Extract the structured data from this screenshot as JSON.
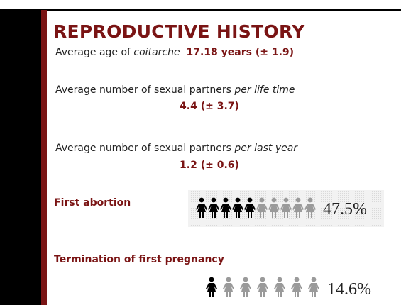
{
  "title": "REPRODUCTIVE HISTORY",
  "items": [
    {
      "label": "Average age of",
      "label_italic": "coitarche",
      "value": "17.18 years (± 1.9)"
    },
    {
      "label": "Average number of sexual partners",
      "label_italic": "per life time",
      "value": "4.4 (± 3.7)"
    },
    {
      "label": "Average number of sexual partners",
      "label_italic": "per last year",
      "value": "1.2 (± 0.6)"
    }
  ],
  "pictograms": [
    {
      "label": "First abortion",
      "value": "47.5%"
    },
    {
      "label": "Termination of first pregnancy",
      "value": "14.6%"
    }
  ]
}
